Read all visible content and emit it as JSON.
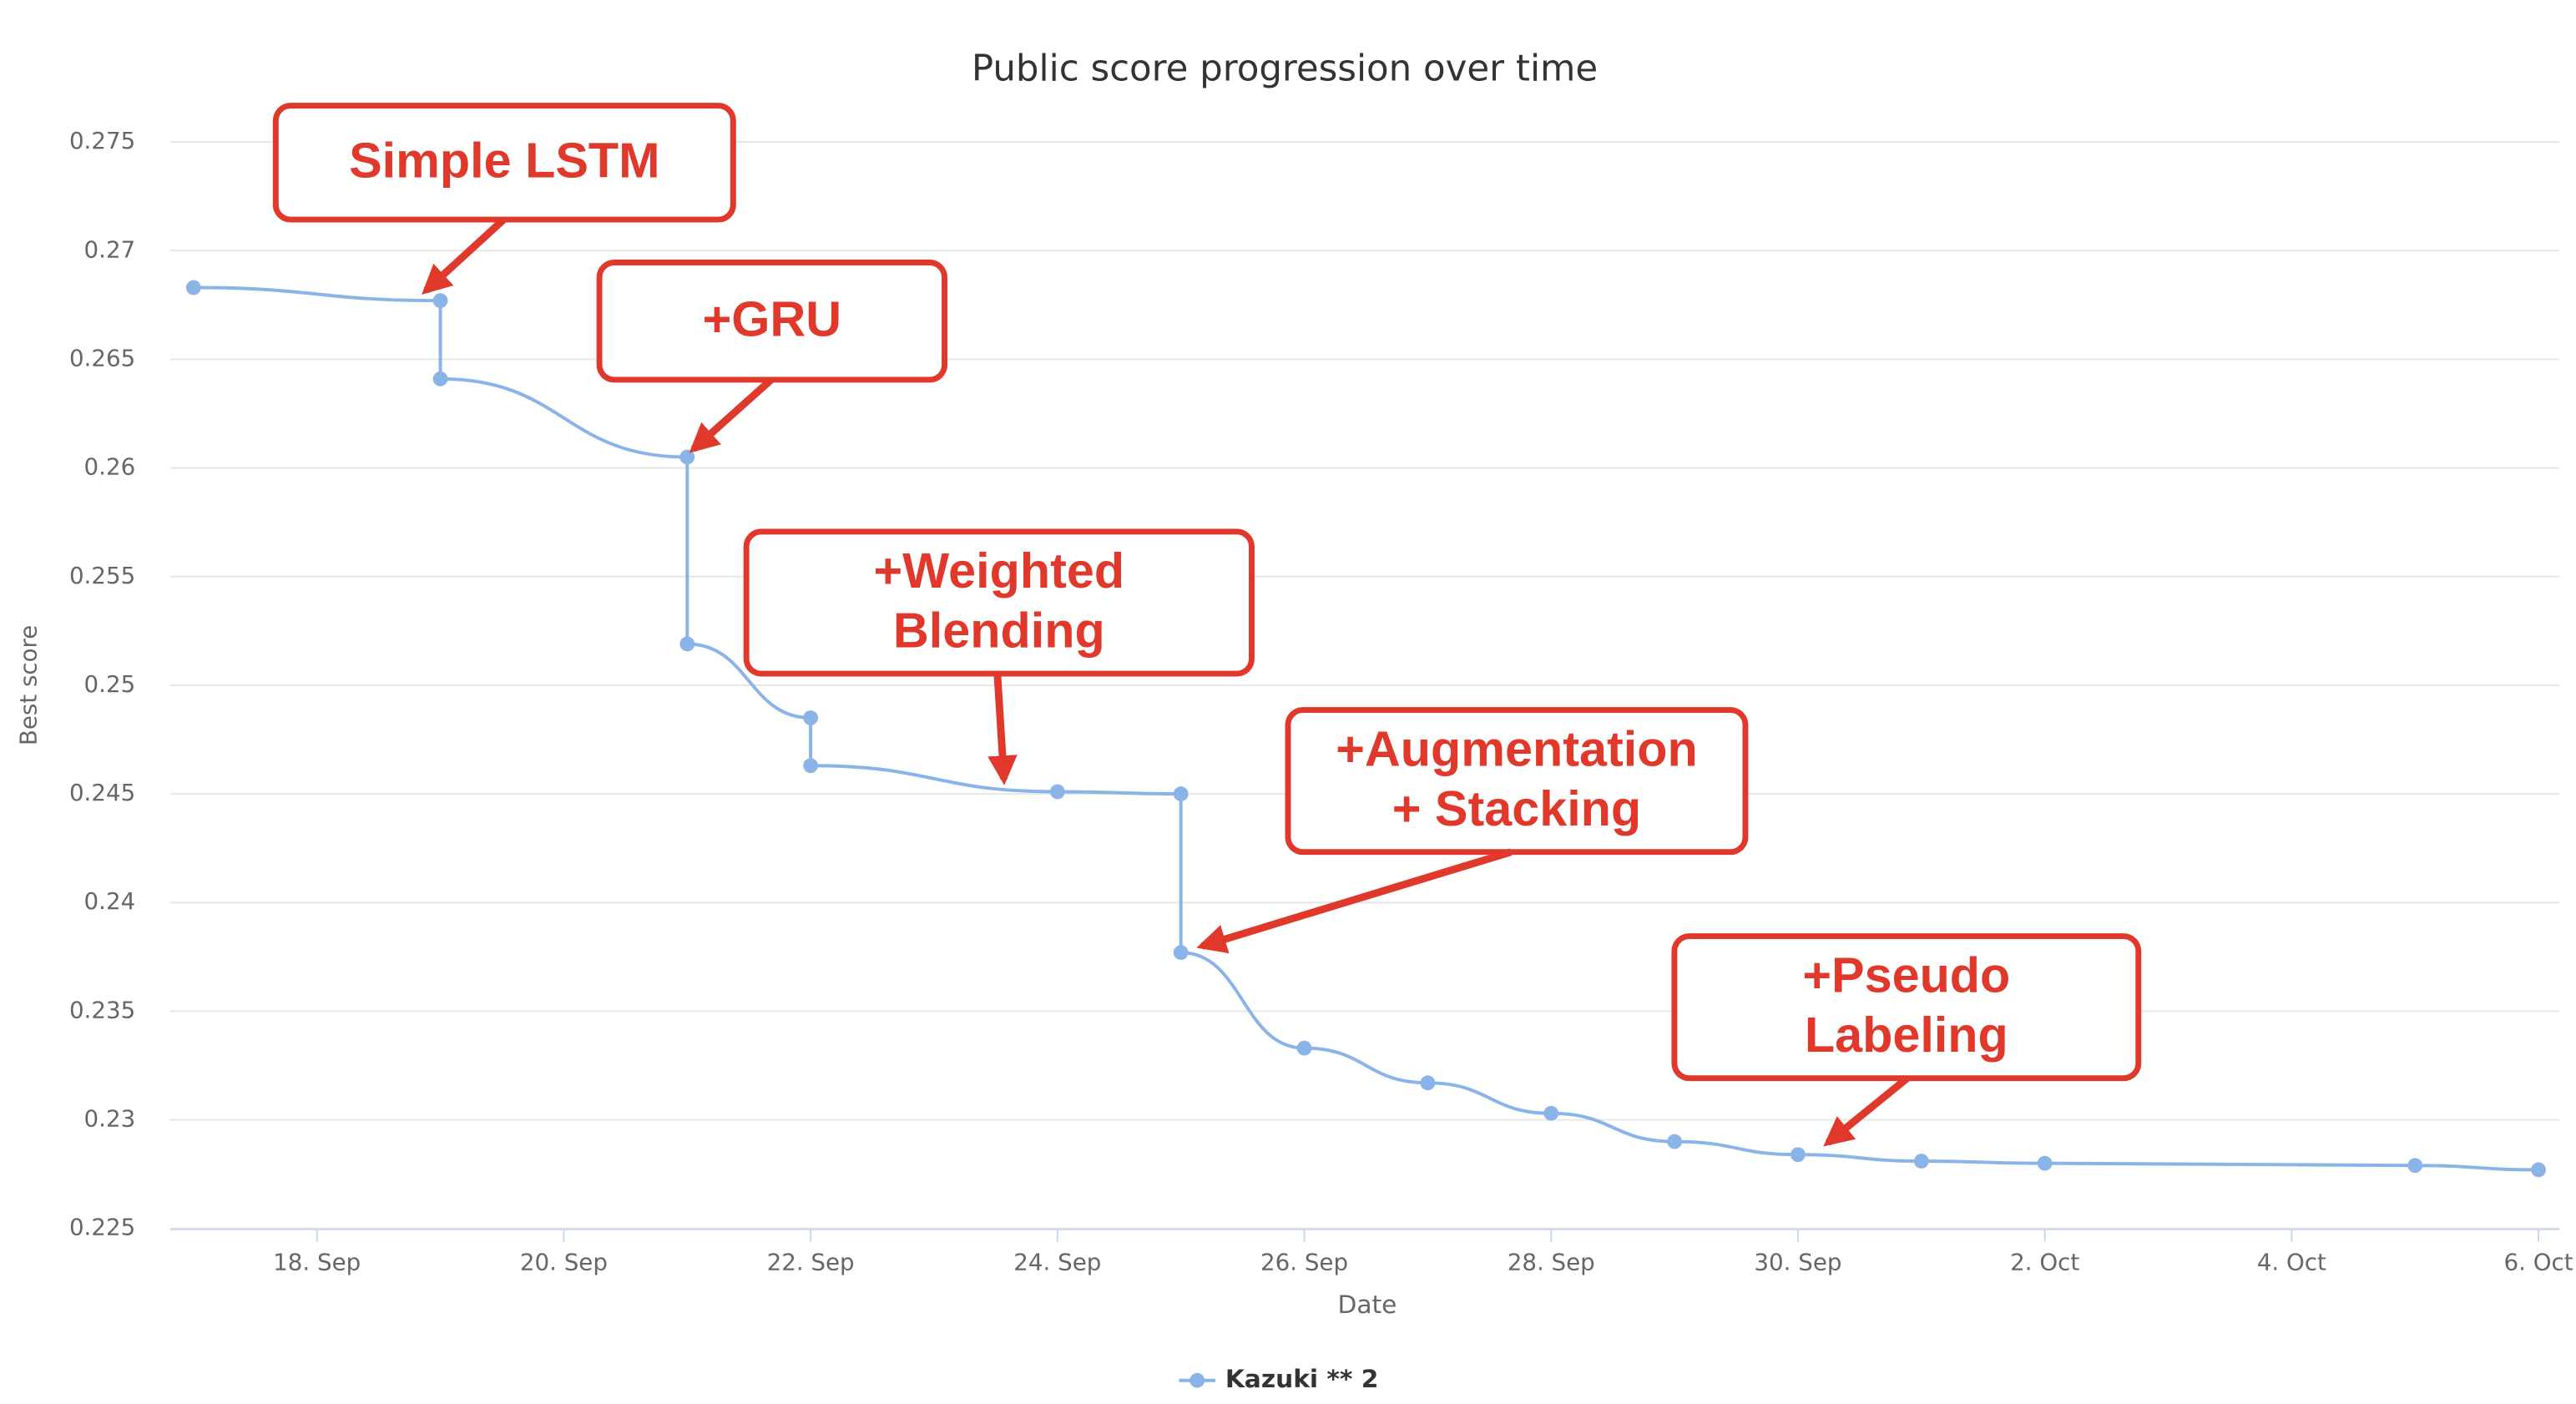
{
  "chart_data": {
    "type": "line",
    "title": "Public score progression over time",
    "x_label": "Date",
    "y_label": "Best score",
    "xlim": [
      16.81,
      36.17
    ],
    "xticks": [
      {
        "value": 18,
        "label": "18. Sep"
      },
      {
        "value": 20,
        "label": "20. Sep"
      },
      {
        "value": 22,
        "label": "22. Sep"
      },
      {
        "value": 24,
        "label": "24. Sep"
      },
      {
        "value": 26,
        "label": "26. Sep"
      },
      {
        "value": 28,
        "label": "28. Sep"
      },
      {
        "value": 30,
        "label": "30. Sep"
      },
      {
        "value": 32,
        "label": "2. Oct"
      },
      {
        "value": 34,
        "label": "4. Oct"
      },
      {
        "value": 36,
        "label": "6. Oct"
      }
    ],
    "ylim": [
      0.225,
      0.275
    ],
    "yticks": [
      0.225,
      0.23,
      0.235,
      0.24,
      0.245,
      0.25,
      0.255,
      0.26,
      0.265,
      0.27,
      0.275
    ],
    "grid": true,
    "legend": "bottom",
    "series": [
      {
        "name": "Kazuki ** 2",
        "color": "#8ab4e8",
        "x": [
          17,
          19,
          19,
          21,
          21,
          22,
          22,
          24,
          25,
          25,
          26,
          27,
          28,
          29,
          30,
          31,
          32,
          35,
          36
        ],
        "values": [
          0.2683,
          0.2677,
          0.2641,
          0.2605,
          0.2519,
          0.2485,
          0.2463,
          0.2451,
          0.245,
          0.2377,
          0.2333,
          0.2317,
          0.2303,
          0.229,
          0.2284,
          0.2281,
          0.228,
          0.2279,
          0.2277
        ]
      }
    ],
    "annotations": [
      {
        "lines": [
          "Simple LSTM"
        ]
      },
      {
        "lines": [
          "+GRU"
        ]
      },
      {
        "lines": [
          "+Weighted",
          "Blending"
        ]
      },
      {
        "lines": [
          "+Augmentation",
          "+ Stacking"
        ]
      },
      {
        "lines": [
          "+Pseudo",
          "Labeling"
        ]
      }
    ]
  }
}
